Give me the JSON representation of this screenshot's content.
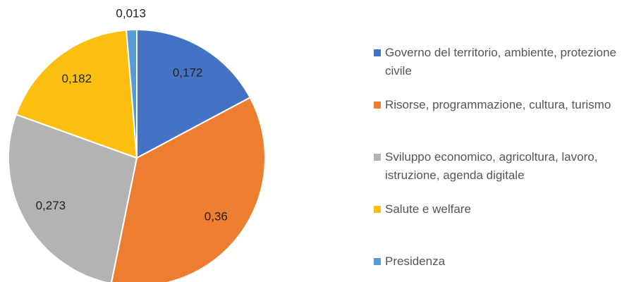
{
  "chart_data": {
    "type": "pie",
    "categories": [
      "Governo del territorio, ambiente, protezione civile",
      "Risorse, programmazione, cultura, turismo",
      "Sviluppo economico, agricoltura, lavoro, istruzione, agenda digitale",
      "Salute e welfare",
      "Presidenza"
    ],
    "values": [
      0.172,
      0.36,
      0.273,
      0.182,
      0.013
    ],
    "value_labels": [
      "0,172",
      "0,36",
      "0,273",
      "0,182",
      "0,013"
    ],
    "colors": [
      "#4472c4",
      "#ed7d31",
      "#b3b3b3",
      "#fcbf10",
      "#5b9bd5"
    ],
    "legend": "right"
  }
}
